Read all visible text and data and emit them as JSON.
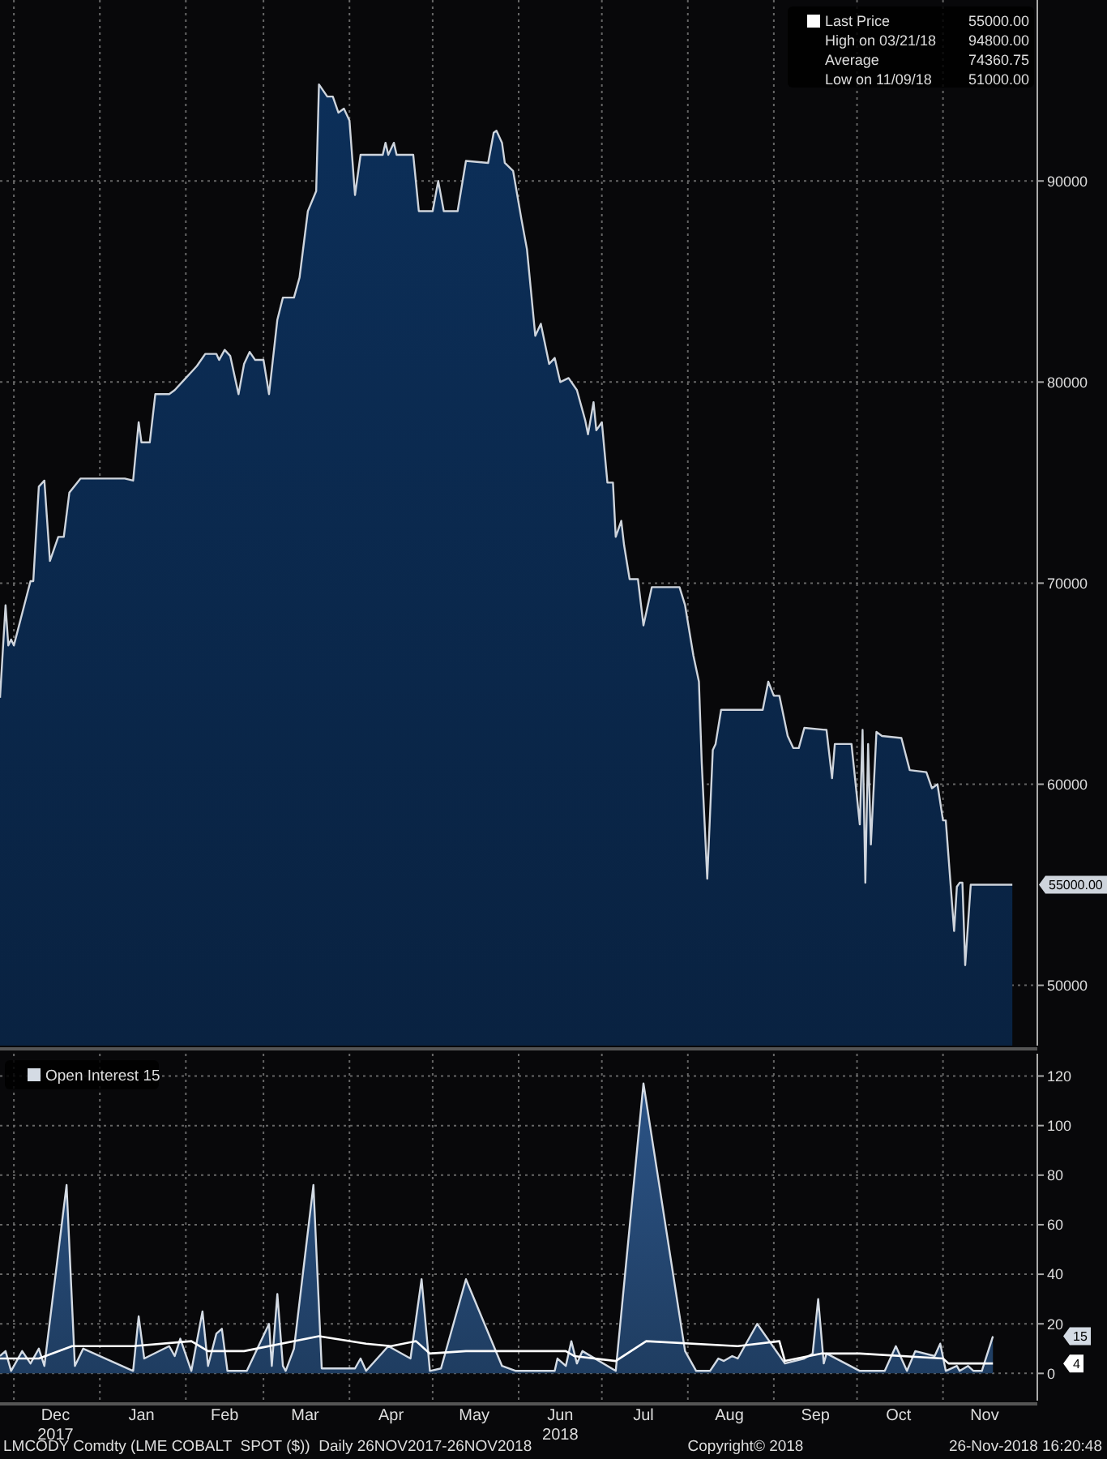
{
  "chart_data": [
    {
      "type": "area",
      "xlim": [
        "2017-11-26",
        "2018-12-05"
      ],
      "ylim": [
        47000,
        99000
      ],
      "yticks": [
        {
          "value": 50000,
          "label": "50000"
        },
        {
          "value": 60000,
          "label": "60000"
        },
        {
          "value": 70000,
          "label": "70000"
        },
        {
          "value": 80000,
          "label": "80000"
        },
        {
          "value": 90000,
          "label": "90000"
        }
      ],
      "xticks": [
        {
          "value": "2017-12-01",
          "label": null
        },
        {
          "value": "2018-01-01",
          "label": null
        },
        {
          "value": "2018-02-01",
          "label": null
        },
        {
          "value": "2018-03-01",
          "label": null
        },
        {
          "value": "2018-04-01",
          "label": null
        },
        {
          "value": "2018-05-01",
          "label": null
        },
        {
          "value": "2018-06-01",
          "label": null
        },
        {
          "value": "2018-07-01",
          "label": null
        },
        {
          "value": "2018-08-01",
          "label": null
        },
        {
          "value": "2018-09-01",
          "label": null
        },
        {
          "value": "2018-10-01",
          "label": null
        },
        {
          "value": "2018-11-01",
          "label": null
        }
      ],
      "tick_labels": "y",
      "grid": true,
      "legend": false,
      "annotations": [
        "Last Price 55000.00",
        "High on 03/21/18 94800.00",
        "Average 74360.75",
        "Low on 11/09/18 51000.00",
        "55000.00"
      ],
      "series": [
        {
          "color": "#0b2a50",
          "x": [
            "2017-11-26",
            "2017-11-28",
            "2017-11-29",
            "2017-11-30",
            "2017-12-01",
            "2017-12-07",
            "2017-12-08",
            "2017-12-10",
            "2017-12-12",
            "2017-12-14",
            "2017-12-17",
            "2017-12-19",
            "2017-12-21",
            "2017-12-25",
            "2018-01-10",
            "2018-01-13",
            "2018-01-15",
            "2018-01-16",
            "2018-01-19",
            "2018-01-21",
            "2018-01-26",
            "2018-01-28",
            "2018-02-01",
            "2018-02-03",
            "2018-02-05",
            "2018-02-08",
            "2018-02-12",
            "2018-02-13",
            "2018-02-15",
            "2018-02-17",
            "2018-02-20",
            "2018-02-22",
            "2018-02-24",
            "2018-02-26",
            "2018-03-01",
            "2018-03-03",
            "2018-03-06",
            "2018-03-08",
            "2018-03-12",
            "2018-03-14",
            "2018-03-17",
            "2018-03-20",
            "2018-03-21",
            "2018-03-24",
            "2018-03-26",
            "2018-03-28",
            "2018-03-30",
            "2018-04-01",
            "2018-04-03",
            "2018-04-05",
            "2018-04-13",
            "2018-04-14",
            "2018-04-15",
            "2018-04-17",
            "2018-04-18",
            "2018-04-24",
            "2018-04-26",
            "2018-05-01",
            "2018-05-03",
            "2018-05-05",
            "2018-05-10",
            "2018-05-13",
            "2018-05-21",
            "2018-05-23",
            "2018-05-24",
            "2018-05-26",
            "2018-05-27",
            "2018-05-30",
            "2018-06-02",
            "2018-06-04",
            "2018-06-07",
            "2018-06-09",
            "2018-06-12",
            "2018-06-14",
            "2018-06-16",
            "2018-06-19",
            "2018-06-22",
            "2018-06-25",
            "2018-06-26",
            "2018-06-28",
            "2018-06-29",
            "2018-07-01",
            "2018-07-03",
            "2018-07-05",
            "2018-07-06",
            "2018-07-08",
            "2018-07-09",
            "2018-07-11",
            "2018-07-14",
            "2018-07-16",
            "2018-07-19",
            "2018-07-29",
            "2018-07-31",
            "2018-08-03",
            "2018-08-05",
            "2018-08-06",
            "2018-08-08",
            "2018-08-10",
            "2018-08-11",
            "2018-08-13",
            "2018-08-28",
            "2018-08-30",
            "2018-09-01",
            "2018-09-03",
            "2018-09-06",
            "2018-09-08",
            "2018-09-10",
            "2018-09-12",
            "2018-09-20",
            "2018-09-22",
            "2018-09-23",
            "2018-09-29",
            "2018-10-02",
            "2018-10-03",
            "2018-10-04",
            "2018-10-05",
            "2018-10-06",
            "2018-10-08",
            "2018-10-10",
            "2018-10-17",
            "2018-10-20",
            "2018-10-26",
            "2018-10-28",
            "2018-10-30",
            "2018-11-01",
            "2018-11-02",
            "2018-11-05",
            "2018-11-06",
            "2018-11-07",
            "2018-11-08",
            "2018-11-09",
            "2018-11-11",
            "2018-11-26"
          ],
          "values": [
            64300,
            68900,
            66900,
            67200,
            66900,
            70100,
            70100,
            74800,
            75100,
            71100,
            72300,
            72300,
            74500,
            75200,
            75200,
            75100,
            78000,
            77000,
            77000,
            79400,
            79400,
            79600,
            80200,
            80500,
            80800,
            81400,
            81400,
            81100,
            81600,
            81300,
            79400,
            80900,
            81500,
            81100,
            81100,
            79400,
            83100,
            84200,
            84200,
            85200,
            88500,
            89500,
            94800,
            94200,
            94200,
            93400,
            93600,
            93000,
            89300,
            91300,
            91300,
            91900,
            91300,
            91900,
            91300,
            91300,
            88500,
            88500,
            90000,
            88500,
            88500,
            91000,
            90900,
            92400,
            92500,
            91900,
            90900,
            90500,
            88100,
            86600,
            82300,
            82900,
            80900,
            81200,
            80000,
            80200,
            79600,
            78100,
            77400,
            79000,
            77600,
            78000,
            75000,
            75000,
            72300,
            73100,
            71900,
            70200,
            70200,
            67900,
            69800,
            69800,
            68900,
            66400,
            65100,
            61100,
            55300,
            61700,
            62000,
            63700,
            63700,
            65100,
            64400,
            64400,
            62400,
            61800,
            61800,
            62800,
            62700,
            60300,
            62000,
            62000,
            58000,
            62700,
            55100,
            62000,
            57000,
            62600,
            62400,
            62300,
            60700,
            60600,
            59800,
            60000,
            58200,
            58200,
            52700,
            54900,
            55100,
            55100,
            51000,
            55000,
            55000
          ]
        }
      ]
    },
    {
      "type": "area",
      "xlim": [
        "2017-11-26",
        "2018-12-05"
      ],
      "ylim": [
        -11,
        129
      ],
      "yticks": [
        0,
        20,
        40,
        60,
        80,
        100,
        120
      ],
      "xticks": [
        {
          "value": "2017-12-01",
          "label": null
        },
        {
          "value": "2018-01-01",
          "label": null
        },
        {
          "value": "2018-02-01",
          "label": null
        },
        {
          "value": "2018-03-01",
          "label": null
        },
        {
          "value": "2018-04-01",
          "label": null
        },
        {
          "value": "2018-05-01",
          "label": null
        },
        {
          "value": "2018-06-01",
          "label": null
        },
        {
          "value": "2018-07-01",
          "label": null
        },
        {
          "value": "2018-08-01",
          "label": null
        },
        {
          "value": "2018-09-01",
          "label": null
        },
        {
          "value": "2018-10-01",
          "label": null
        },
        {
          "value": "2018-11-01",
          "label": null
        },
        {
          "value": "2017-12-16",
          "label": "Dec\n2017"
        },
        {
          "value": "2018-01-16",
          "label": "Jan"
        },
        {
          "value": "2018-02-15",
          "label": "Feb"
        },
        {
          "value": "2018-03-16",
          "label": "Mar"
        },
        {
          "value": "2018-04-16",
          "label": "Apr"
        },
        {
          "value": "2018-05-16",
          "label": "May"
        },
        {
          "value": "2018-06-16",
          "label": "Jun\n2018"
        },
        {
          "value": "2018-07-16",
          "label": "Jul"
        },
        {
          "value": "2018-08-16",
          "label": "Aug"
        },
        {
          "value": "2018-09-16",
          "label": "Sep"
        },
        {
          "value": "2018-10-16",
          "label": "Oct"
        },
        {
          "value": "2018-11-16",
          "label": "Nov"
        }
      ],
      "grid": true,
      "legend": "top left",
      "annotations": [
        "LMCODY Comdty (LME COBALT  SPOT ($))  Daily 26NOV2017-26NOV2018",
        "Copyright© 2018",
        "26-Nov-2018 16:20:48",
        "15",
        "4"
      ],
      "series": [
        {
          "name": "Open Interest 15",
          "color": "#274b78",
          "x": [
            "2017-11-26",
            "2017-11-28",
            "2017-11-30",
            "2017-12-04",
            "2017-12-07",
            "2017-12-10",
            "2017-12-12",
            "2017-12-20",
            "2017-12-23",
            "2017-12-26",
            "2018-01-13",
            "2018-01-15",
            "2018-01-17",
            "2018-01-26",
            "2018-01-28",
            "2018-01-30",
            "2018-02-03",
            "2018-02-07",
            "2018-02-09",
            "2018-02-12",
            "2018-02-14",
            "2018-02-16",
            "2018-02-23",
            "2018-03-03",
            "2018-03-04",
            "2018-03-06",
            "2018-03-08",
            "2018-03-09",
            "2018-03-12",
            "2018-03-19",
            "2018-03-22",
            "2018-04-03",
            "2018-04-05",
            "2018-04-07",
            "2018-04-15",
            "2018-04-23",
            "2018-04-27",
            "2018-04-30",
            "2018-05-04",
            "2018-05-13",
            "2018-05-26",
            "2018-05-31",
            "2018-06-14",
            "2018-06-15",
            "2018-06-18",
            "2018-06-20",
            "2018-06-22",
            "2018-06-24",
            "2018-07-06",
            "2018-07-16",
            "2018-07-31",
            "2018-08-04",
            "2018-08-09",
            "2018-08-12",
            "2018-08-14",
            "2018-08-17",
            "2018-08-19",
            "2018-08-26",
            "2018-09-05",
            "2018-09-12",
            "2018-09-15",
            "2018-09-17",
            "2018-09-19",
            "2018-09-20",
            "2018-10-02",
            "2018-10-11",
            "2018-10-15",
            "2018-10-19",
            "2018-10-22",
            "2018-10-29",
            "2018-10-31",
            "2018-11-02",
            "2018-11-06",
            "2018-11-07",
            "2018-11-10",
            "2018-11-12",
            "2018-11-15",
            "2018-11-19"
          ],
          "values": [
            7,
            9,
            1,
            9,
            4,
            10,
            3,
            76,
            3,
            10,
            1,
            23,
            6,
            11,
            7,
            14,
            1,
            25,
            3,
            16,
            18,
            1,
            1,
            20,
            3,
            32,
            3,
            1,
            10,
            76,
            2,
            2,
            6,
            1,
            11,
            6,
            38,
            1,
            2,
            38,
            3,
            1,
            1,
            6,
            3,
            13,
            4,
            9,
            1,
            117,
            9,
            1,
            1,
            6,
            5,
            7,
            6,
            20,
            4,
            6,
            8,
            30,
            4,
            8,
            1,
            1,
            11,
            1,
            9,
            7,
            12,
            1,
            3,
            1,
            3,
            1,
            1,
            15
          ]
        },
        {
          "type": "line",
          "color": "#ffffff",
          "x": [
            "2017-11-26",
            "2017-12-10",
            "2017-12-22",
            "2018-01-13",
            "2018-02-03",
            "2018-02-09",
            "2018-02-22",
            "2018-03-21",
            "2018-04-07",
            "2018-04-16",
            "2018-04-25",
            "2018-04-30",
            "2018-05-13",
            "2018-06-18",
            "2018-06-21",
            "2018-07-06",
            "2018-07-17",
            "2018-08-19",
            "2018-09-03",
            "2018-09-05",
            "2018-09-18",
            "2018-10-02",
            "2018-11-01",
            "2018-11-03",
            "2018-11-19"
          ],
          "values": [
            6,
            6,
            11,
            11,
            13,
            9,
            9,
            15,
            12,
            11,
            13,
            8,
            9,
            9,
            7,
            5,
            13,
            11,
            13,
            5,
            8,
            8,
            6,
            4,
            4
          ]
        }
      ]
    }
  ]
}
